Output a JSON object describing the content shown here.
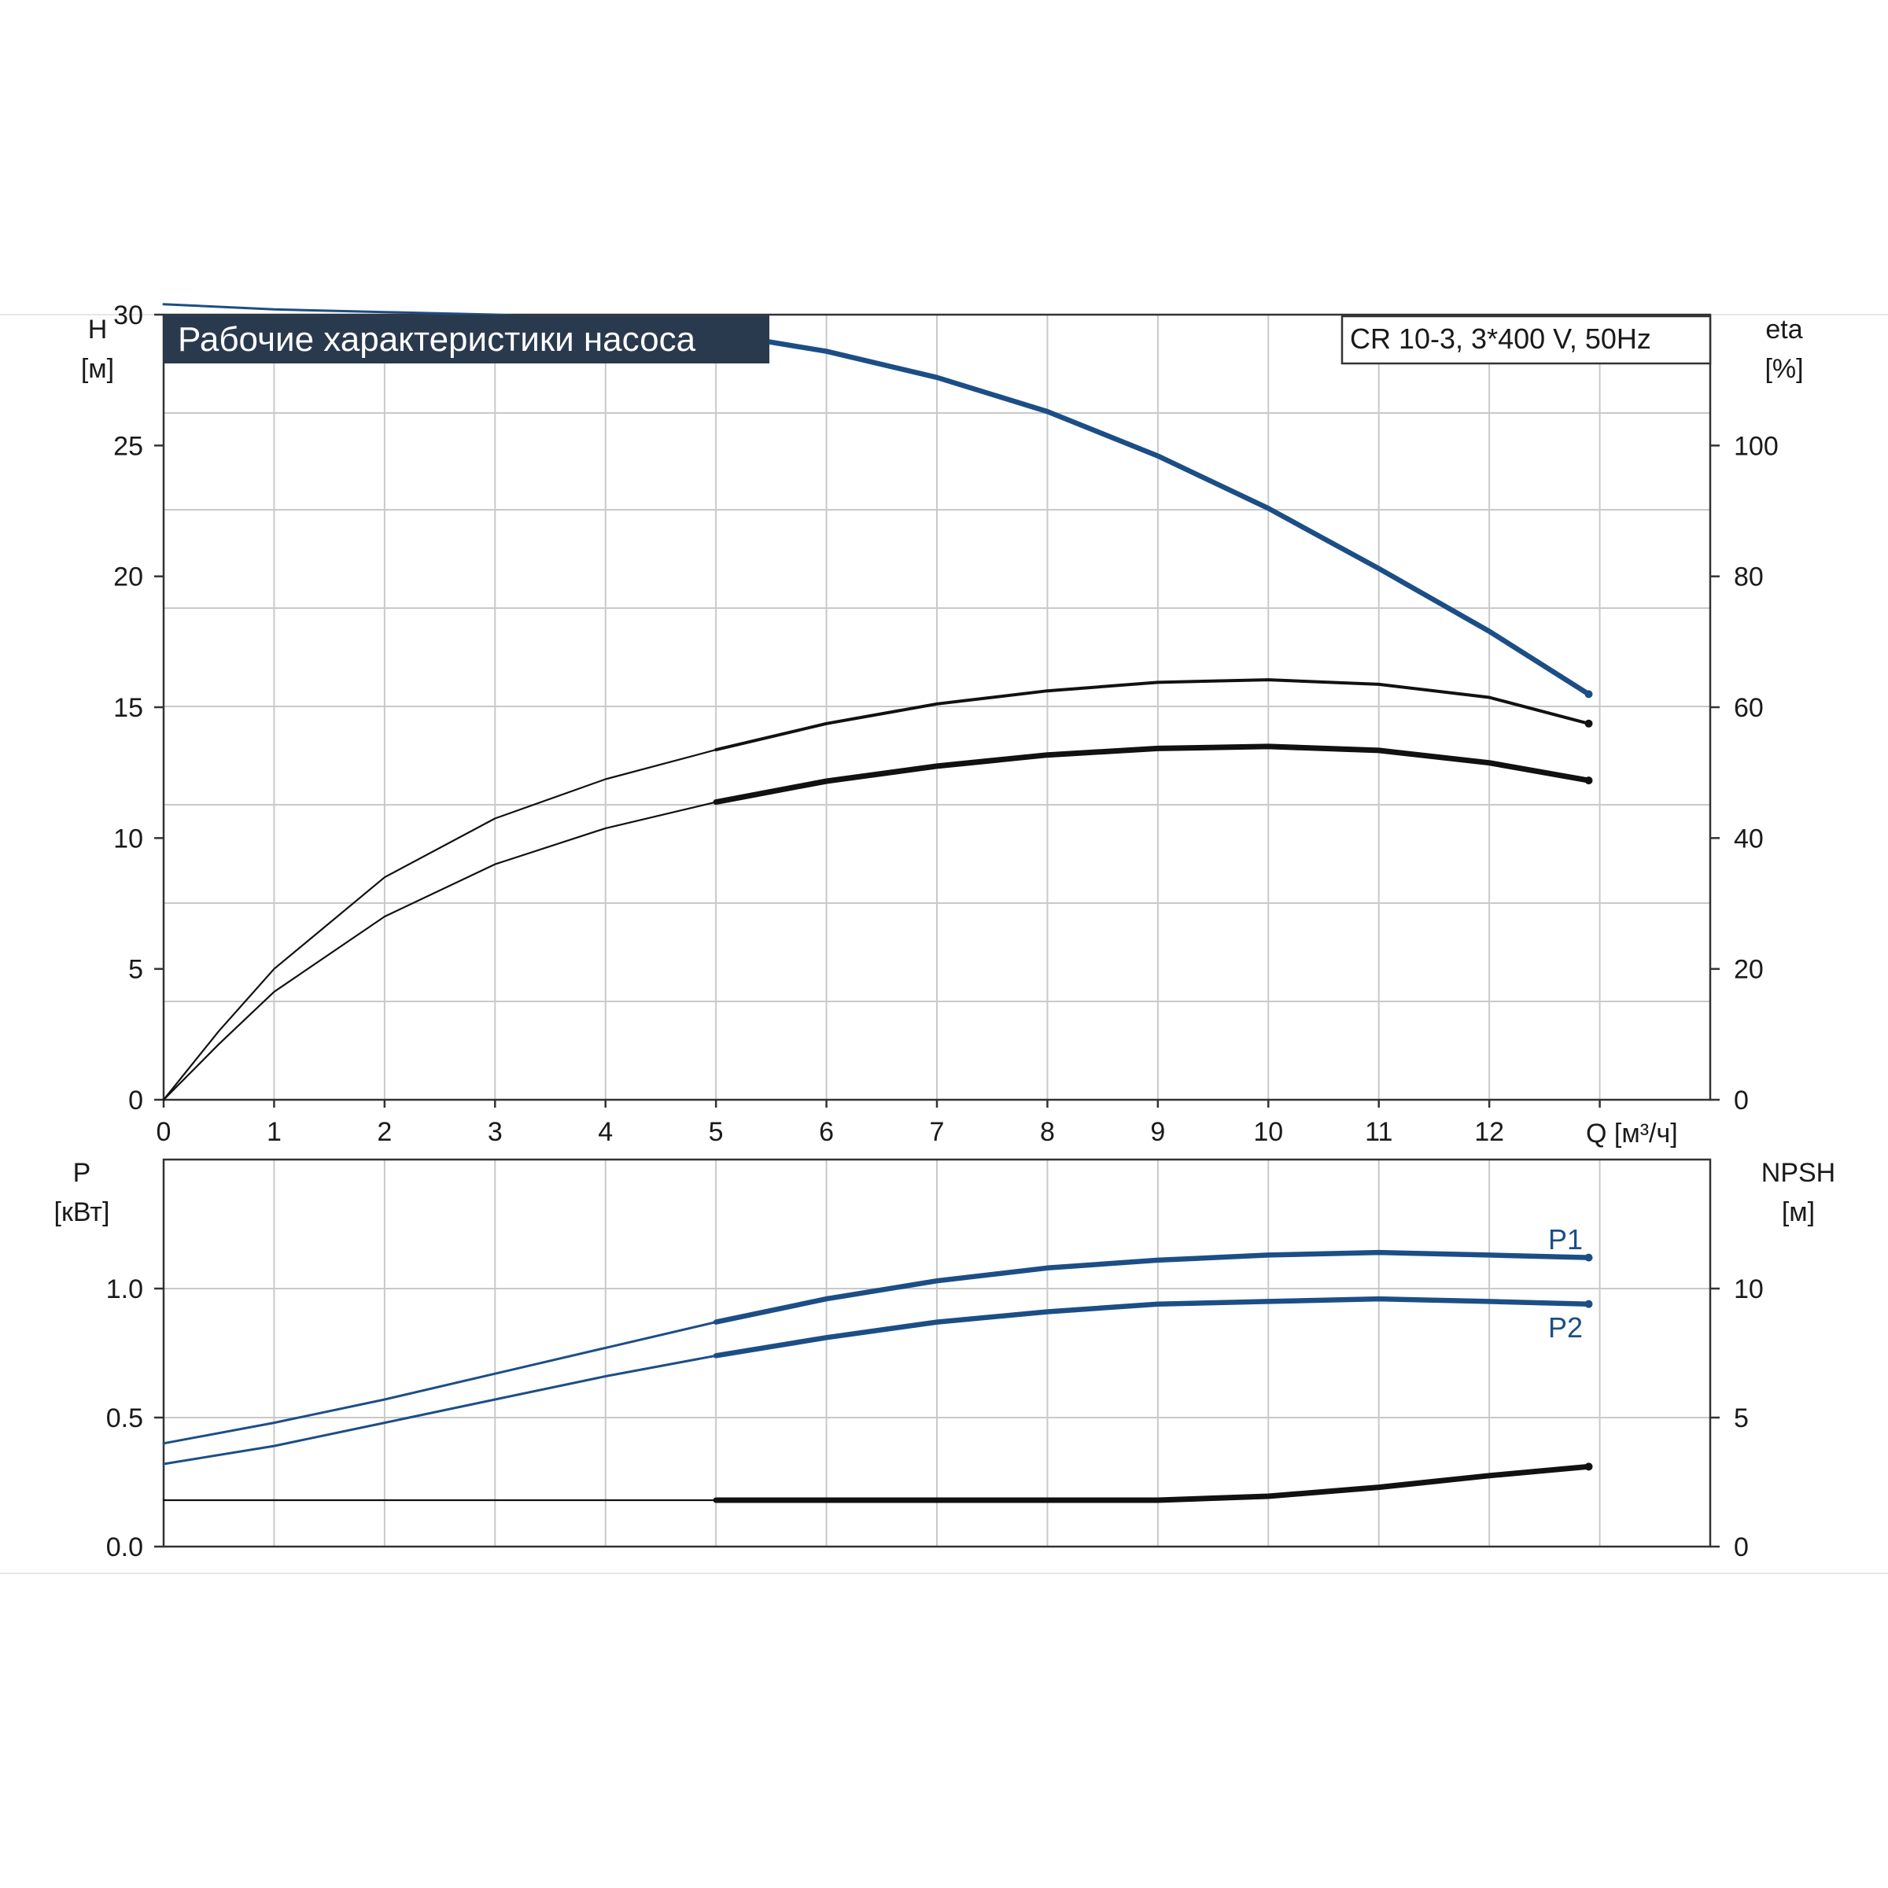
{
  "title": "Рабочие характеристики насоса",
  "model_label": "CR 10-3, 3*400 V, 50Hz",
  "colors": {
    "blue": "#1c4e86",
    "black": "#111111",
    "title_bg": "#2a3a4e",
    "grid": "#c9c9c9"
  },
  "chart_data": [
    {
      "type": "line",
      "name": "top-panel",
      "xlabel": "Q [м³/ч]",
      "ylabel_left": [
        "H",
        "[м]"
      ],
      "ylabel_right": [
        "eta",
        "[%]"
      ],
      "xlim": [
        0,
        14
      ],
      "ylim_left": [
        0,
        30
      ],
      "ylim_right": [
        0,
        120
      ],
      "x_ticks": [
        "0",
        "1",
        "2",
        "3",
        "4",
        "5",
        "6",
        "7",
        "8",
        "9",
        "10",
        "11",
        "12"
      ],
      "y_ticks_left": [
        "0",
        "5",
        "10",
        "15",
        "20",
        "25",
        "30"
      ],
      "y_ticks_right": [
        "0",
        "20",
        "40",
        "60",
        "80",
        "100"
      ],
      "grid": true,
      "series": [
        {
          "axis": "left",
          "color": "#1c4e86",
          "x": [
            0,
            1,
            2,
            3,
            4,
            5,
            6,
            7,
            8,
            9,
            10,
            11,
            12,
            12.9
          ],
          "y": [
            30.4,
            30.2,
            30.1,
            30.0,
            29.8,
            29.3,
            28.6,
            27.6,
            26.3,
            24.6,
            22.6,
            20.3,
            17.9,
            15.5
          ]
        },
        {
          "axis": "right",
          "color": "#111111",
          "x": [
            0,
            0.5,
            1,
            2,
            3,
            4,
            5,
            6,
            7,
            8,
            9,
            10,
            11,
            12,
            12.9
          ],
          "y": [
            0,
            10.5,
            20,
            34,
            43,
            49,
            53.5,
            57.5,
            60.5,
            62.5,
            63.8,
            64.2,
            63.5,
            61.5,
            57.5
          ]
        },
        {
          "axis": "right",
          "color": "#111111",
          "x": [
            0,
            0.5,
            1,
            2,
            3,
            4,
            5,
            6,
            7,
            8,
            9,
            10,
            11,
            12,
            12.9
          ],
          "y": [
            0,
            8.5,
            16.5,
            28,
            36,
            41.5,
            45.5,
            48.7,
            51,
            52.7,
            53.7,
            54,
            53.4,
            51.5,
            48.8
          ]
        }
      ]
    },
    {
      "type": "line",
      "name": "bottom-panel",
      "ylabel_left": [
        "P",
        "[кВт]"
      ],
      "ylabel_right": [
        "NPSH",
        "[м]"
      ],
      "xlim": [
        0,
        14
      ],
      "ylim_left": [
        0,
        1.5
      ],
      "ylim_right": [
        0,
        15
      ],
      "y_ticks_left": [
        "0.0",
        "0.5",
        "1.0"
      ],
      "y_ticks_right": [
        "0",
        "5",
        "10"
      ],
      "grid": true,
      "series": [
        {
          "name": "P1",
          "axis": "left",
          "color": "#1c4e86",
          "x": [
            0,
            1,
            2,
            3,
            4,
            5,
            6,
            7,
            8,
            9,
            10,
            11,
            12,
            12.9
          ],
          "y": [
            0.4,
            0.48,
            0.57,
            0.67,
            0.77,
            0.87,
            0.96,
            1.03,
            1.08,
            1.11,
            1.13,
            1.14,
            1.13,
            1.12
          ]
        },
        {
          "name": "P2",
          "axis": "left",
          "color": "#1c4e86",
          "x": [
            0,
            1,
            2,
            3,
            4,
            5,
            6,
            7,
            8,
            9,
            10,
            11,
            12,
            12.9
          ],
          "y": [
            0.32,
            0.39,
            0.48,
            0.57,
            0.66,
            0.74,
            0.81,
            0.87,
            0.91,
            0.94,
            0.95,
            0.96,
            0.95,
            0.94
          ]
        },
        {
          "axis": "right",
          "color": "#111111",
          "x": [
            0,
            1,
            2,
            3,
            4,
            5,
            6,
            7,
            8,
            9,
            10,
            11,
            12,
            12.9
          ],
          "y": [
            1.8,
            1.8,
            1.8,
            1.8,
            1.8,
            1.8,
            1.8,
            1.8,
            1.8,
            1.8,
            1.95,
            2.3,
            2.75,
            3.1
          ]
        }
      ]
    }
  ]
}
